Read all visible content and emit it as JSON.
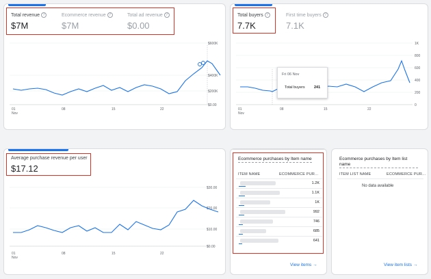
{
  "revenue_card": {
    "metrics": [
      {
        "label": "Total revenue",
        "value": "$7M"
      },
      {
        "label": "Ecommerce revenue",
        "value": "$7M"
      },
      {
        "label": "Total ad revenue",
        "value": "$0.00"
      }
    ],
    "chart": {
      "y_ticks": [
        "$600K",
        "$400K",
        "$200K",
        "$0.00"
      ],
      "x_ticks": [
        "01",
        "08",
        "15",
        "22"
      ],
      "x_sub": "Nov"
    }
  },
  "buyers_card": {
    "metrics": [
      {
        "label": "Total buyers",
        "value": "7.7K"
      },
      {
        "label": "First time buyers",
        "value": "7.1K"
      }
    ],
    "chart": {
      "y_ticks": [
        "1K",
        "800",
        "600",
        "400",
        "200",
        "0"
      ],
      "x_ticks": [
        "01",
        "08",
        "15",
        "22"
      ],
      "x_sub": "Nov"
    },
    "tooltip": {
      "date": "Fri 06 Nov",
      "label": "Total buyers",
      "value": "241"
    }
  },
  "avg_card": {
    "metric": {
      "label": "Average purchase revenue per user",
      "value": "$17.12"
    },
    "chart": {
      "y_ticks": [
        "$30.00",
        "$20.00",
        "$10.00",
        "$0.00"
      ],
      "x_ticks": [
        "01",
        "08",
        "15",
        "22"
      ],
      "x_sub": "Nov"
    }
  },
  "items_card": {
    "title": "Ecommerce purchases by Item name",
    "col_name": "ITEM NAME",
    "col_value": "ECOMMERCE PUR...",
    "rows": [
      {
        "value": "1.2K",
        "ratio": 1.0
      },
      {
        "value": "1.1K",
        "ratio": 0.9
      },
      {
        "value": "1K",
        "ratio": 0.83
      },
      {
        "value": "992",
        "ratio": 0.8
      },
      {
        "value": "746",
        "ratio": 0.62
      },
      {
        "value": "685",
        "ratio": 0.57
      },
      {
        "value": "641",
        "ratio": 0.53
      }
    ],
    "link": "View items"
  },
  "itemlist_card": {
    "title": "Ecommerce purchases by Item list name",
    "col_name": "ITEM LIST NAME",
    "col_value": "ECOMMERCE PUR...",
    "empty": "No data available",
    "link": "View item lists"
  },
  "colors": {
    "accent": "#1a73e8",
    "highlight": "#d93025"
  }
}
